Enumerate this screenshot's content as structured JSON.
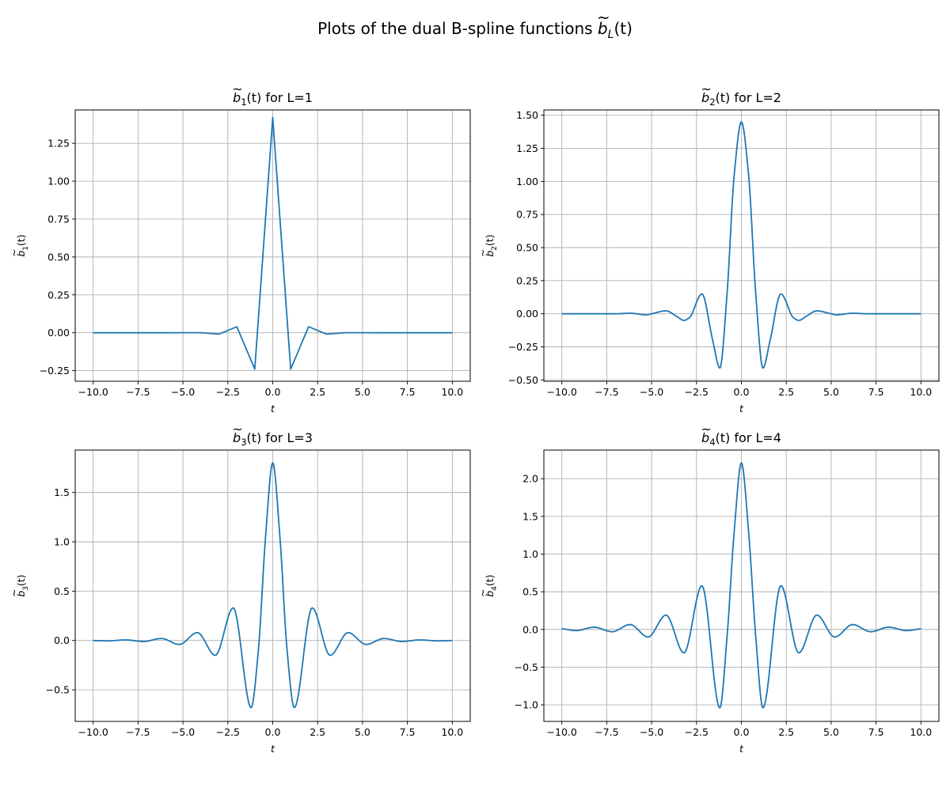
{
  "figure": {
    "suptitle_prefix": "Plots of the dual B-spline functions ",
    "suptitle_symbol": "b",
    "suptitle_sub": "L",
    "suptitle_arg": "(t)"
  },
  "chart_data": [
    {
      "type": "line",
      "title_symbol": "b",
      "title_sub": "1",
      "title_arg": "(t)",
      "title_suffix": " for L=1",
      "xlabel": "t",
      "ylabel_symbol": "b",
      "ylabel_sub": "1",
      "ylabel_arg": "(t)",
      "xlim": [
        -11,
        11
      ],
      "ylim": [
        -0.32,
        1.47
      ],
      "xticks": [
        -10,
        -7.5,
        -5,
        -2.5,
        0,
        2.5,
        5,
        7.5,
        10
      ],
      "xtick_labels": [
        "−10.0",
        "−7.5",
        "−5.0",
        "−2.5",
        "0.0",
        "2.5",
        "5.0",
        "7.5",
        "10.0"
      ],
      "yticks": [
        -0.25,
        0,
        0.25,
        0.5,
        0.75,
        1,
        1.25
      ],
      "ytick_labels": [
        "−0.25",
        "0.00",
        "0.25",
        "0.50",
        "0.75",
        "1.00",
        "1.25"
      ],
      "grid": true,
      "series": [
        {
          "color": "#1f77b4",
          "x": [
            -10,
            -9,
            -8,
            -7,
            -6,
            -5,
            -4,
            -3,
            -2,
            -1,
            0,
            1,
            2,
            3,
            4,
            5,
            6,
            7,
            8,
            9,
            10
          ],
          "y": [
            0,
            0,
            0,
            0,
            0,
            0.0004,
            0.0002,
            -0.009,
            0.04,
            -0.24,
            1.42,
            -0.24,
            0.04,
            -0.009,
            0.0002,
            0.0004,
            0,
            0,
            0,
            0,
            0
          ]
        }
      ]
    },
    {
      "type": "line",
      "title_symbol": "b",
      "title_sub": "2",
      "title_arg": "(t)",
      "title_suffix": " for L=2",
      "xlabel": "t",
      "ylabel_symbol": "b",
      "ylabel_sub": "2",
      "ylabel_arg": "(t)",
      "xlim": [
        -11,
        11
      ],
      "ylim": [
        -0.51,
        1.54
      ],
      "xticks": [
        -10,
        -7.5,
        -5,
        -2.5,
        0,
        2.5,
        5,
        7.5,
        10
      ],
      "xtick_labels": [
        "−10.0",
        "−7.5",
        "−5.0",
        "−2.5",
        "0.0",
        "2.5",
        "5.0",
        "7.5",
        "10.0"
      ],
      "yticks": [
        -0.5,
        -0.25,
        0,
        0.25,
        0.5,
        0.75,
        1,
        1.25,
        1.5
      ],
      "ytick_labels": [
        "−0.50",
        "−0.25",
        "0.00",
        "0.25",
        "0.50",
        "0.75",
        "1.00",
        "1.25",
        "1.50"
      ],
      "grid": true,
      "series": [
        {
          "color": "#1f77b4",
          "x": [
            -10,
            -8,
            -7,
            -6.2,
            -5.3,
            -5,
            -4.2,
            -3.6,
            -3.2,
            -2.9,
            -2.2,
            -1.6,
            -1.2,
            -0.8,
            -0.4,
            0,
            0.4,
            0.8,
            1.2,
            1.6,
            2.2,
            2.9,
            3.2,
            3.6,
            4.2,
            5,
            5.3,
            6.2,
            7,
            8,
            10
          ],
          "y": [
            0,
            0,
            0,
            0.004,
            -0.008,
            0,
            0.022,
            -0.02,
            -0.05,
            -0.03,
            0.15,
            -0.2,
            -0.41,
            0.15,
            1.05,
            1.45,
            1.05,
            0.15,
            -0.41,
            -0.2,
            0.15,
            -0.03,
            -0.05,
            -0.02,
            0.022,
            0,
            -0.008,
            0.004,
            0,
            0,
            0
          ]
        }
      ]
    },
    {
      "type": "line",
      "title_symbol": "b",
      "title_sub": "3",
      "title_arg": "(t)",
      "title_suffix": " for L=3",
      "xlabel": "t",
      "ylabel_symbol": "b",
      "ylabel_sub": "3",
      "ylabel_arg": "(t)",
      "xlim": [
        -11,
        11
      ],
      "ylim": [
        -0.82,
        1.93
      ],
      "xticks": [
        -10,
        -7.5,
        -5,
        -2.5,
        0,
        2.5,
        5,
        7.5,
        10
      ],
      "xtick_labels": [
        "−10.0",
        "−7.5",
        "−5.0",
        "−2.5",
        "0.0",
        "2.5",
        "5.0",
        "7.5",
        "10.0"
      ],
      "yticks": [
        -0.5,
        0,
        0.5,
        1,
        1.5
      ],
      "ytick_labels": [
        "−0.5",
        "0.0",
        "0.5",
        "1.0",
        "1.5"
      ],
      "grid": true,
      "series": [
        {
          "color": "#1f77b4",
          "x": [
            -10,
            -9.2,
            -8.2,
            -7.2,
            -6.2,
            -5.2,
            -4.2,
            -3.2,
            -2.2,
            -1.2,
            -0.8,
            -0.4,
            0,
            0.4,
            0.8,
            1.2,
            2.2,
            3.2,
            4.2,
            5.2,
            6.2,
            7.2,
            8.2,
            9.2,
            10
          ],
          "y": [
            0,
            -0.004,
            0.006,
            -0.01,
            0.02,
            -0.04,
            0.08,
            -0.15,
            0.33,
            -0.68,
            -0.1,
            1.05,
            1.8,
            1.05,
            -0.1,
            -0.68,
            0.33,
            -0.15,
            0.08,
            -0.04,
            0.02,
            -0.01,
            0.006,
            -0.004,
            0
          ]
        }
      ]
    },
    {
      "type": "line",
      "title_symbol": "b",
      "title_sub": "4",
      "title_arg": "(t)",
      "title_suffix": " for L=4",
      "xlabel": "t",
      "ylabel_symbol": "b",
      "ylabel_sub": "4",
      "ylabel_arg": "(t)",
      "xlim": [
        -11,
        11
      ],
      "ylim": [
        -1.22,
        2.38
      ],
      "xticks": [
        -10,
        -7.5,
        -5,
        -2.5,
        0,
        2.5,
        5,
        7.5,
        10
      ],
      "xtick_labels": [
        "−10.0",
        "−7.5",
        "−5.0",
        "−2.5",
        "0.0",
        "2.5",
        "5.0",
        "7.5",
        "10.0"
      ],
      "yticks": [
        -1,
        -0.5,
        0,
        0.5,
        1,
        1.5,
        2
      ],
      "ytick_labels": [
        "−1.0",
        "−0.5",
        "0.0",
        "0.5",
        "1.0",
        "1.5",
        "2.0"
      ],
      "grid": true,
      "series": [
        {
          "color": "#1f77b4",
          "x": [
            -10,
            -9.2,
            -8.2,
            -7.2,
            -6.2,
            -5.2,
            -4.2,
            -3.2,
            -2.2,
            -1.2,
            -0.8,
            -0.4,
            0,
            0.4,
            0.8,
            1.2,
            2.2,
            3.2,
            4.2,
            5.2,
            6.2,
            7.2,
            8.2,
            9.2,
            10
          ],
          "y": [
            0.01,
            -0.015,
            0.03,
            -0.03,
            0.065,
            -0.1,
            0.19,
            -0.31,
            0.58,
            -1.04,
            -0.1,
            1.3,
            2.21,
            1.3,
            -0.1,
            -1.04,
            0.58,
            -0.31,
            0.19,
            -0.1,
            0.065,
            -0.03,
            0.03,
            -0.015,
            0.01
          ]
        }
      ]
    }
  ]
}
